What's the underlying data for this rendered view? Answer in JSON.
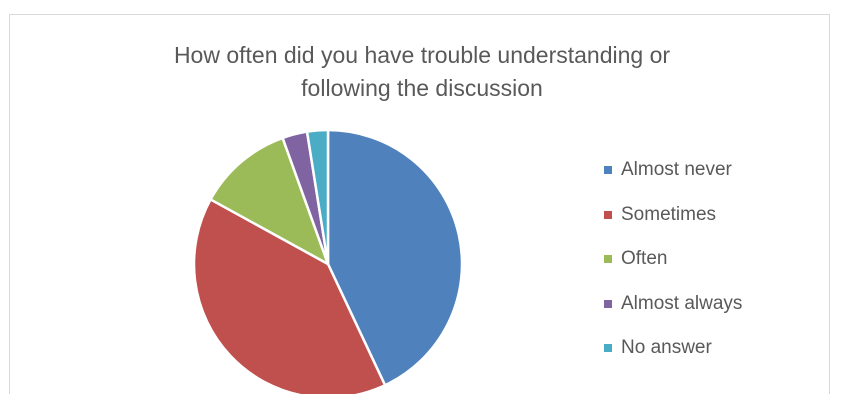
{
  "chart_data": {
    "type": "pie",
    "title": "How often did you have trouble understanding or following the discussion",
    "title_lines": [
      "How often did you have trouble understanding or",
      "following the discussion"
    ],
    "legend_position": "right",
    "slices": [
      {
        "label": "Almost never",
        "value": 43,
        "color": "#4F81BD"
      },
      {
        "label": "Sometimes",
        "value": 40,
        "color": "#C0504D"
      },
      {
        "label": "Often",
        "value": 11.5,
        "color": "#9BBB59"
      },
      {
        "label": "Almost always",
        "value": 3,
        "color": "#8064A2"
      },
      {
        "label": "No answer",
        "value": 2.5,
        "color": "#4BACC6"
      }
    ]
  }
}
